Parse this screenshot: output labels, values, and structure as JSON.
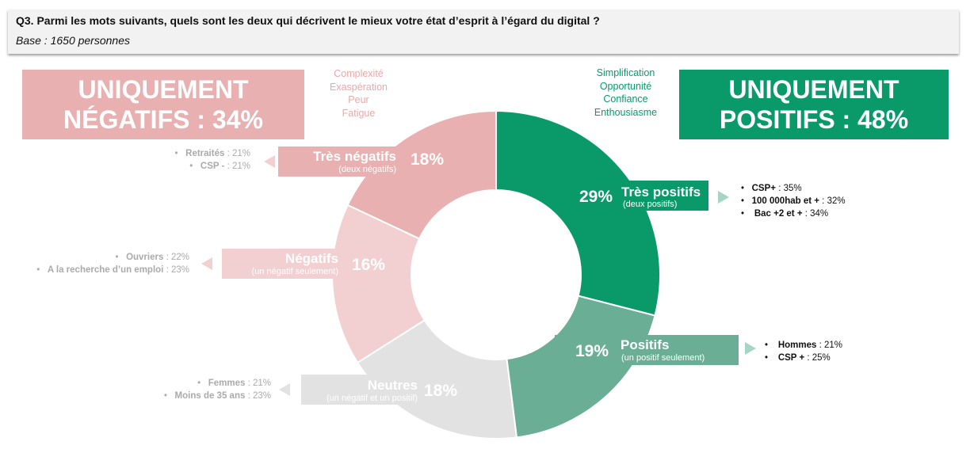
{
  "header": {
    "question": "Q3. Parmi les mots suivants, quels sont les deux qui décrivent le mieux votre état d’esprit à l’égard du digital ?",
    "base": "Base : 1650 personnes"
  },
  "negative_summary": {
    "line1": "UNIQUEMENT",
    "line2": "NÉGATIFS  : 34%",
    "color": "#e8b0b0"
  },
  "positive_summary": {
    "line1": "UNIQUEMENT",
    "line2": "POSITIFS : 48%",
    "color": "#0a9a69"
  },
  "negative_words": [
    "Complexité",
    "Exaspération",
    "Peur",
    "Fatigue"
  ],
  "positive_words": [
    "Simplification",
    "Opportunité",
    "Confiance",
    "Enthousiasme"
  ],
  "chart_data": {
    "type": "pie",
    "subtype": "donut",
    "order": "clockwise from top",
    "slices": [
      {
        "name": "Très positifs",
        "sub": "(deux positifs)",
        "value": 29,
        "label": "29%",
        "color": "#0a9a69",
        "details": [
          {
            "k": "CSP+",
            "v": "35%"
          },
          {
            "k": "100 000hab et +",
            "v": "32%"
          },
          {
            "k": "Bac +2 et +",
            "v": "34%"
          }
        ]
      },
      {
        "name": "Positifs",
        "sub": "(un positif seulement)",
        "value": 19,
        "label": "19%",
        "color": "#6aae96",
        "details": [
          {
            "k": "Hommes",
            "v": "21%"
          },
          {
            "k": "CSP +",
            "v": "25%"
          }
        ]
      },
      {
        "name": "Neutres",
        "sub": "(un négatif et un positif)",
        "value": 18,
        "label": "18%",
        "color": "#e2e2e2",
        "details": [
          {
            "k": "Femmes",
            "v": "21%"
          },
          {
            "k": "Moins de 35 ans",
            "v": "23%"
          }
        ]
      },
      {
        "name": "Négatifs",
        "sub": "(un négatif seulement)",
        "value": 16,
        "label": "16%",
        "color": "#f2d0d2",
        "details": [
          {
            "k": "Ouvriers",
            "v": "22%"
          },
          {
            "k": "A la recherche d’un emploi",
            "v": "23%"
          }
        ]
      },
      {
        "name": "Très négatifs",
        "sub": "(deux négatifs)",
        "value": 18,
        "label": "18%",
        "color": "#e8b0b0",
        "details": [
          {
            "k": "Retraités",
            "v": "21%"
          },
          {
            "k": "CSP -",
            "v": "21%"
          }
        ]
      }
    ]
  }
}
